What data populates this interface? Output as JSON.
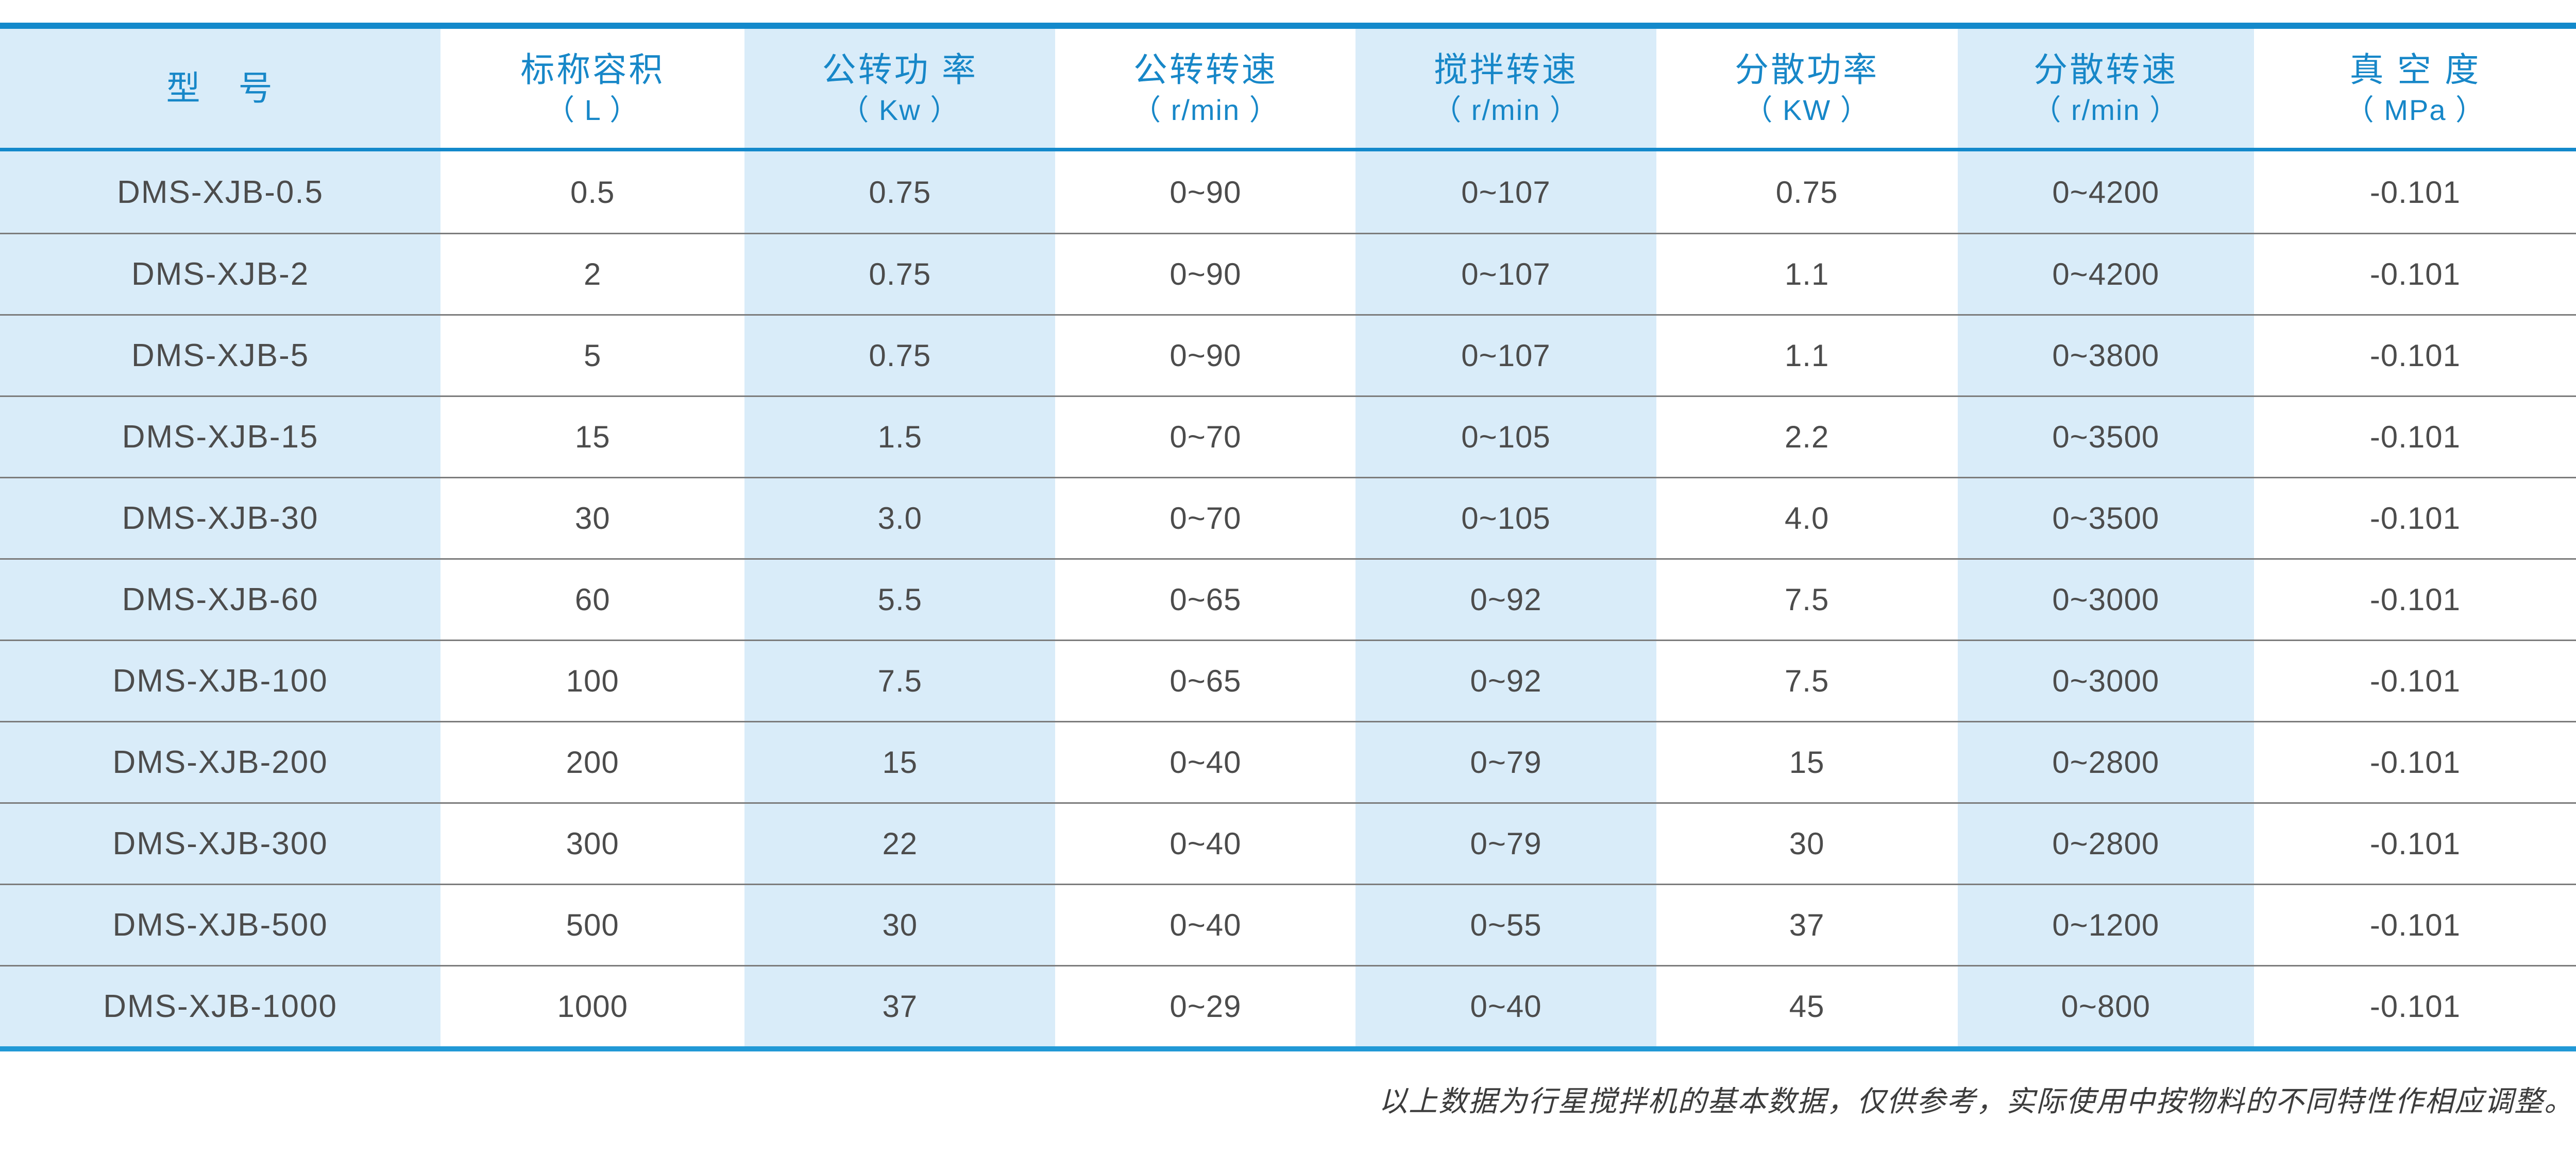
{
  "colors": {
    "border_blue_top": "#1389cb",
    "border_blue_bottom": "#2199d6",
    "header_text_blue": "#1787c8",
    "cell_blue_bg": "#d9ecf9",
    "data_text": "#4c4c4c",
    "row_separator": "#7c7c7c"
  },
  "table": {
    "columns": [
      {
        "label": "型　号",
        "unit": ""
      },
      {
        "label": "标称容积",
        "unit": "（ L ）"
      },
      {
        "label": "公转功 率",
        "unit": "（ Kw ）"
      },
      {
        "label": "公转转速",
        "unit": "（ r/min ）"
      },
      {
        "label": "搅拌转速",
        "unit": "（ r/min ）"
      },
      {
        "label": "分散功率",
        "unit": "（ KW ）"
      },
      {
        "label": "分散转速",
        "unit": "（ r/min ）"
      },
      {
        "label": "真 空 度",
        "unit": "（ MPa ）"
      }
    ],
    "rows": [
      {
        "cells": [
          "DMS-XJB-0.5",
          "0.5",
          "0.75",
          "0~90",
          "0~107",
          "0.75",
          "0~4200",
          "-0.101"
        ]
      },
      {
        "cells": [
          "DMS-XJB-2",
          "2",
          "0.75",
          "0~90",
          "0~107",
          "1.1",
          "0~4200",
          "-0.101"
        ]
      },
      {
        "cells": [
          "DMS-XJB-5",
          "5",
          "0.75",
          "0~90",
          "0~107",
          "1.1",
          "0~3800",
          "-0.101"
        ]
      },
      {
        "cells": [
          "DMS-XJB-15",
          "15",
          "1.5",
          "0~70",
          "0~105",
          "2.2",
          "0~3500",
          "-0.101"
        ]
      },
      {
        "cells": [
          "DMS-XJB-30",
          "30",
          "3.0",
          "0~70",
          "0~105",
          "4.0",
          "0~3500",
          "-0.101"
        ]
      },
      {
        "cells": [
          "DMS-XJB-60",
          "60",
          "5.5",
          "0~65",
          "0~92",
          "7.5",
          "0~3000",
          "-0.101"
        ]
      },
      {
        "cells": [
          "DMS-XJB-100",
          "100",
          "7.5",
          "0~65",
          "0~92",
          "7.5",
          "0~3000",
          "-0.101"
        ]
      },
      {
        "cells": [
          "DMS-XJB-200",
          "200",
          "15",
          "0~40",
          "0~79",
          "15",
          "0~2800",
          "-0.101"
        ]
      },
      {
        "cells": [
          "DMS-XJB-300",
          "300",
          "22",
          "0~40",
          "0~79",
          "30",
          "0~2800",
          "-0.101"
        ]
      },
      {
        "cells": [
          "DMS-XJB-500",
          "500",
          "30",
          "0~40",
          "0~55",
          "37",
          "0~1200",
          "-0.101"
        ]
      },
      {
        "cells": [
          "DMS-XJB-1000",
          "1000",
          "37",
          "0~29",
          "0~40",
          "45",
          "0~800",
          "-0.101"
        ]
      }
    ]
  },
  "footnote": "以上数据为行星搅拌机的基本数据，仅供参考，实际使用中按物料的不同特性作相应调整。"
}
